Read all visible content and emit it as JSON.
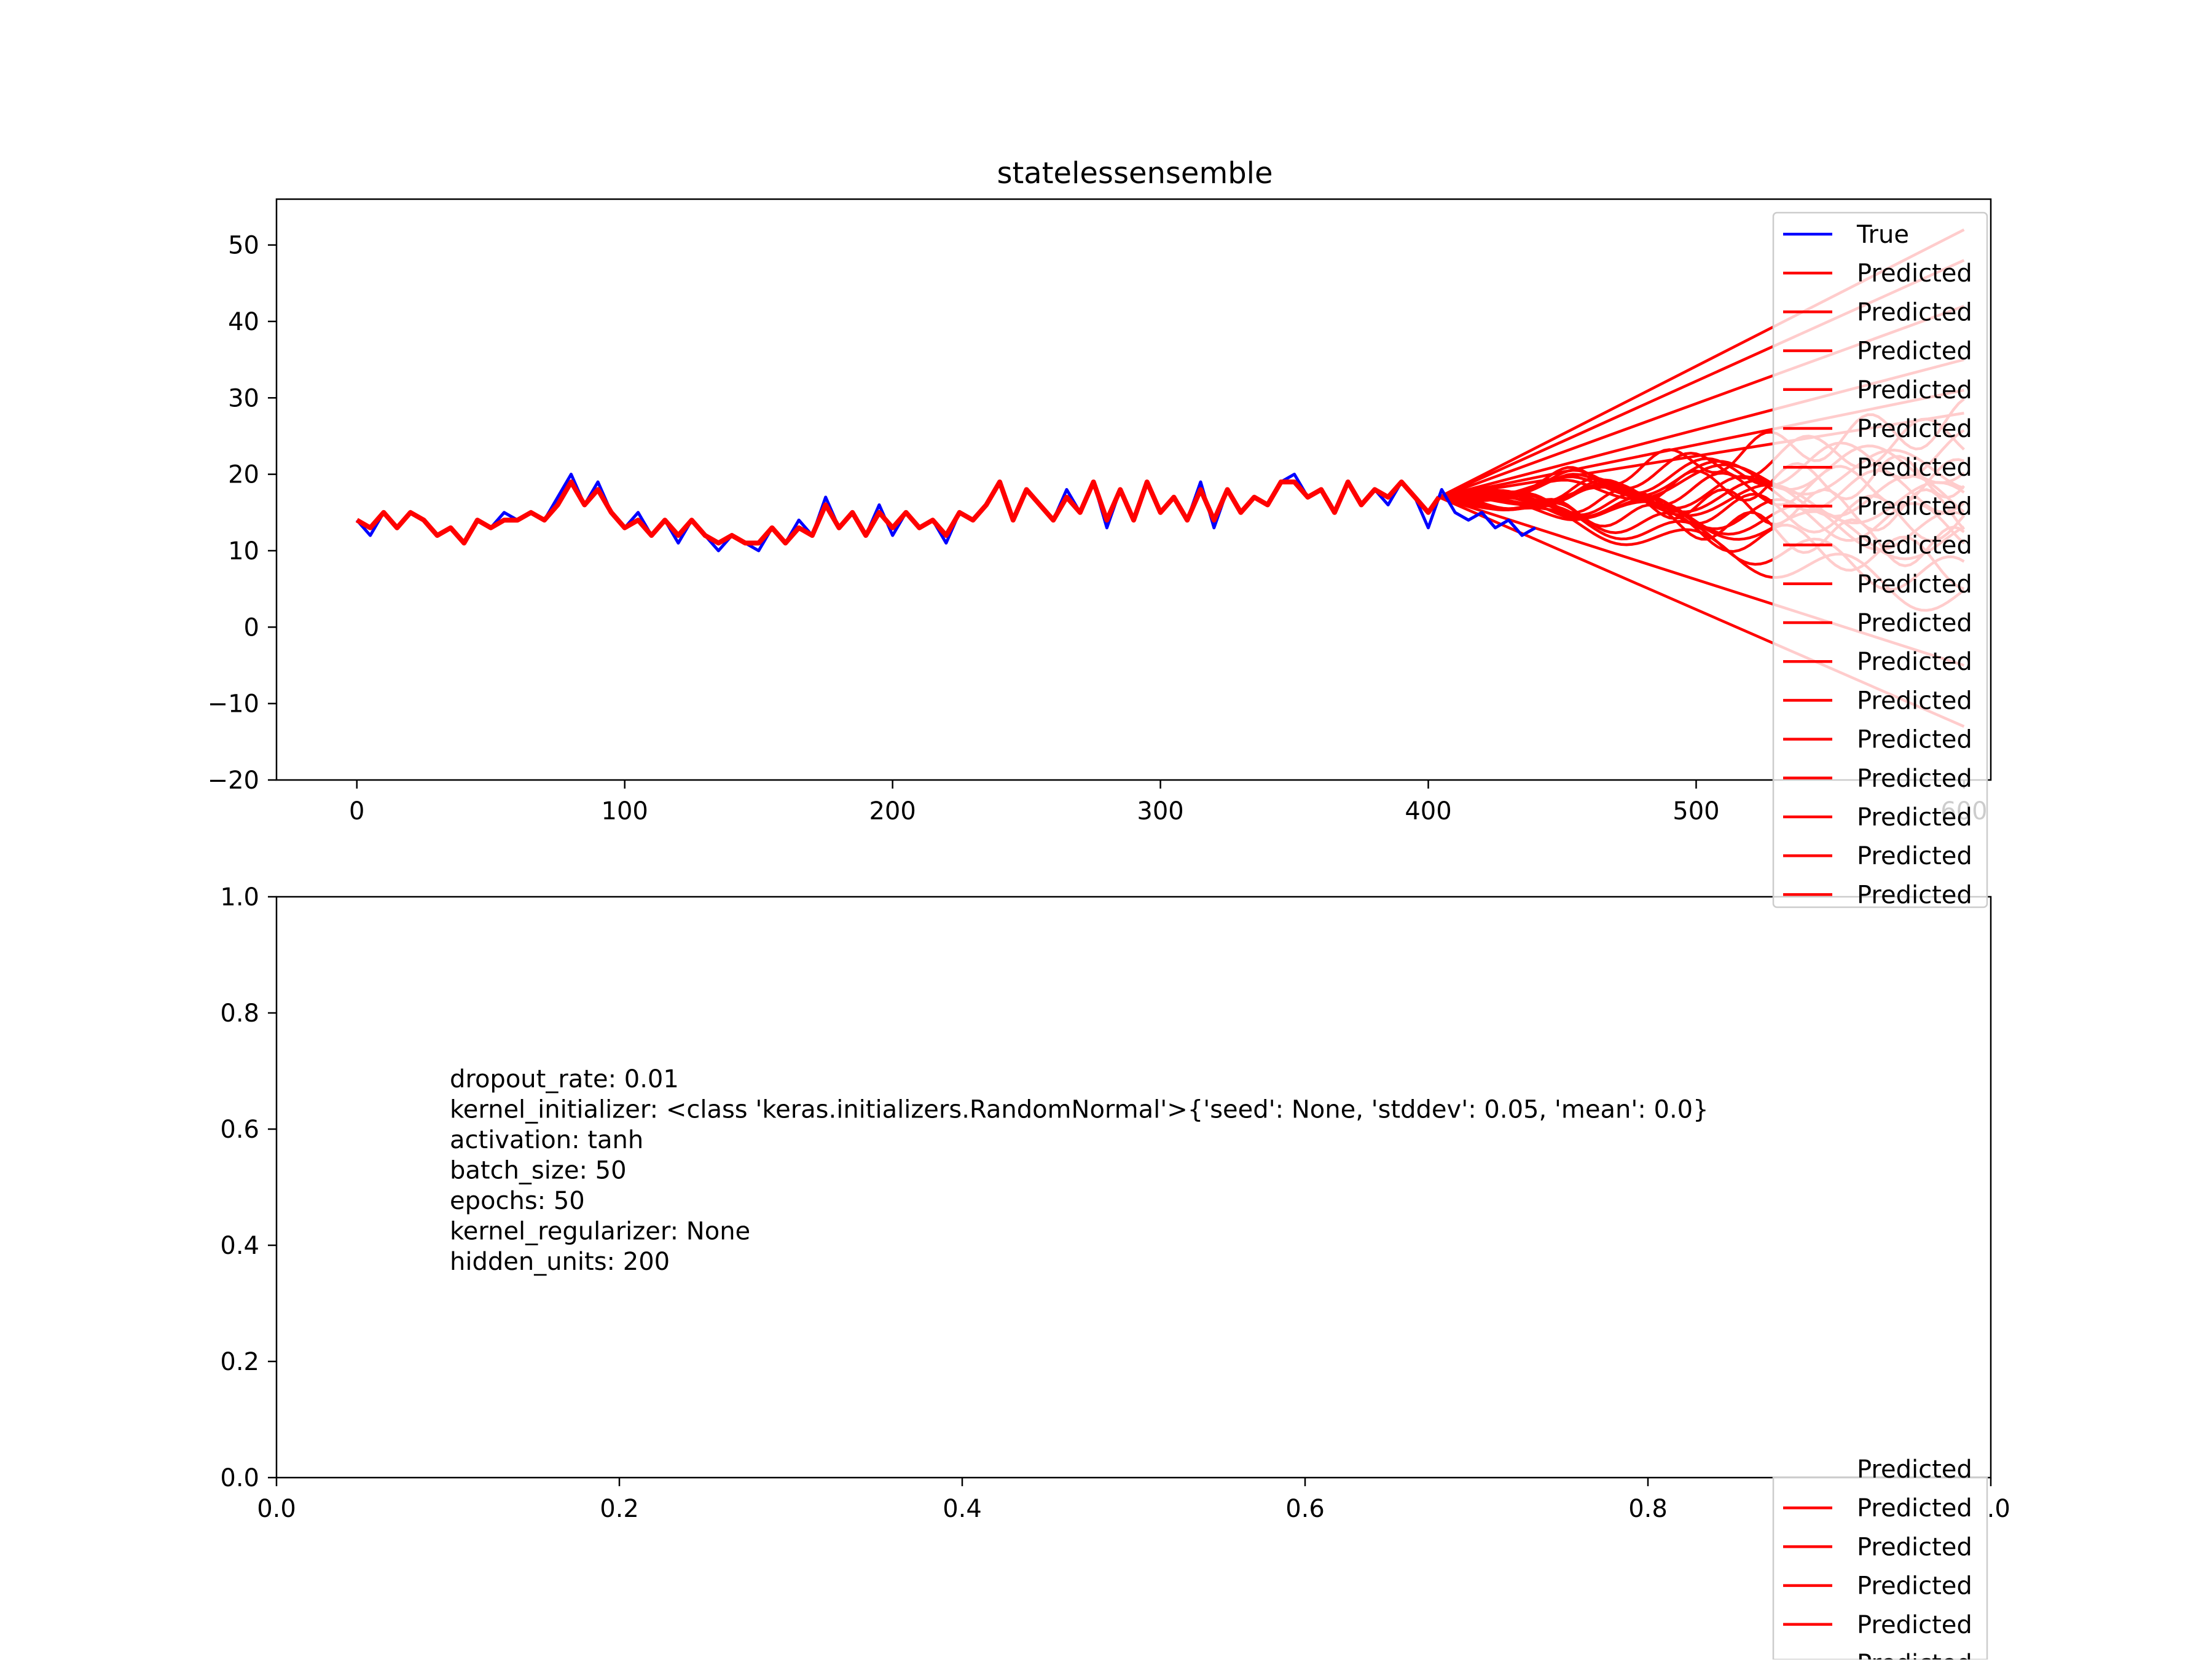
{
  "chart_data": [
    {
      "type": "line",
      "title": "statelessensemble",
      "xlim": [
        -30,
        610
      ],
      "ylim": [
        -20,
        56
      ],
      "xticks": [
        0,
        100,
        200,
        300,
        400,
        500,
        600
      ],
      "yticks": [
        -20,
        -10,
        0,
        10,
        20,
        30,
        40,
        50
      ],
      "xtick_labels": [
        "0",
        "100",
        "200",
        "300",
        "400",
        "500",
        "600"
      ],
      "ytick_labels": [
        "−20",
        "−10",
        "0",
        "10",
        "20",
        "30",
        "40",
        "50"
      ],
      "legend_position": "upper right",
      "legend": [
        "True",
        "Predicted",
        "Predicted",
        "Predicted",
        "Predicted",
        "Predicted",
        "Predicted",
        "Predicted",
        "Predicted",
        "Predicted",
        "Predicted",
        "Predicted",
        "Predicted",
        "Predicted",
        "Predicted",
        "Predicted",
        "Predicted",
        "Predicted"
      ],
      "legend_bottom": [
        "Predicted",
        "Predicted",
        "Predicted",
        "Predicted",
        "Predicted",
        "Predicted"
      ],
      "true_color": "#0000ff",
      "predicted_color": "#ff0000",
      "true_series": {
        "name": "True",
        "x": [
          0,
          5,
          10,
          15,
          20,
          25,
          30,
          35,
          40,
          45,
          50,
          55,
          60,
          65,
          70,
          75,
          80,
          85,
          90,
          95,
          100,
          105,
          110,
          115,
          120,
          125,
          130,
          135,
          140,
          145,
          150,
          155,
          160,
          165,
          170,
          175,
          180,
          185,
          190,
          195,
          200,
          205,
          210,
          215,
          220,
          225,
          230,
          235,
          240,
          245,
          250,
          255,
          260,
          265,
          270,
          275,
          280,
          285,
          290,
          295,
          300,
          305,
          310,
          315,
          320,
          325,
          330,
          335,
          340,
          345,
          350,
          355,
          360,
          365,
          370,
          375,
          380,
          385,
          390,
          395,
          400,
          405,
          410,
          415,
          420,
          425,
          430,
          435,
          440
        ],
        "y": [
          14,
          12,
          15,
          13,
          15,
          14,
          12,
          13,
          11,
          14,
          13,
          15,
          14,
          15,
          14,
          17,
          20,
          16,
          19,
          15,
          13,
          15,
          12,
          14,
          11,
          14,
          12,
          10,
          12,
          11,
          10,
          13,
          11,
          14,
          12,
          17,
          13,
          15,
          12,
          16,
          12,
          15,
          13,
          14,
          11,
          15,
          14,
          16,
          19,
          14,
          18,
          16,
          14,
          18,
          15,
          19,
          13,
          18,
          14,
          19,
          15,
          17,
          14,
          19,
          13,
          18,
          15,
          17,
          16,
          19,
          20,
          17,
          18,
          15,
          19,
          16,
          18,
          16,
          19,
          17,
          13,
          18,
          15,
          14,
          15,
          13,
          14,
          12,
          13
        ]
      },
      "predicted_series": {
        "name": "Predicted",
        "x": [
          0,
          5,
          10,
          15,
          20,
          25,
          30,
          35,
          40,
          45,
          50,
          55,
          60,
          65,
          70,
          75,
          80,
          85,
          90,
          95,
          100,
          105,
          110,
          115,
          120,
          125,
          130,
          135,
          140,
          145,
          150,
          155,
          160,
          165,
          170,
          175,
          180,
          185,
          190,
          195,
          200,
          205,
          210,
          215,
          220,
          225,
          230,
          235,
          240,
          245,
          250,
          255,
          260,
          265,
          270,
          275,
          280,
          285,
          290,
          295,
          300,
          305,
          310,
          315,
          320,
          325,
          330,
          335,
          340,
          345,
          350,
          355,
          360,
          365,
          370,
          375,
          380,
          385,
          390,
          395,
          400,
          404
        ],
        "y": [
          14,
          13,
          15,
          13,
          15,
          14,
          12,
          13,
          11,
          14,
          13,
          14,
          14,
          15,
          14,
          16,
          19,
          16,
          18,
          15,
          13,
          14,
          12,
          14,
          12,
          14,
          12,
          11,
          12,
          11,
          11,
          13,
          11,
          13,
          12,
          16,
          13,
          15,
          12,
          15,
          13,
          15,
          13,
          14,
          12,
          15,
          14,
          16,
          19,
          14,
          18,
          16,
          14,
          17,
          15,
          19,
          14,
          18,
          14,
          19,
          15,
          17,
          14,
          18,
          14,
          18,
          15,
          17,
          16,
          19,
          19,
          17,
          18,
          15,
          19,
          16,
          18,
          17,
          19,
          17,
          15,
          17
        ]
      },
      "forecast_origin": {
        "x": 404,
        "y": 17
      },
      "forecast_end_x": 600,
      "forecast_straight_end_values": [
        52,
        48,
        42,
        35,
        31,
        28,
        -5,
        -13
      ],
      "forecast_wavy_end_values": [
        27,
        25,
        23,
        22,
        21,
        20,
        19,
        18,
        17,
        16,
        15,
        14,
        13,
        12,
        11,
        10,
        8,
        6,
        4
      ]
    },
    {
      "type": "text",
      "xlim": [
        0.0,
        1.0
      ],
      "ylim": [
        0.0,
        1.0
      ],
      "xticks": [
        0.0,
        0.2,
        0.4,
        0.6,
        0.8,
        1.0
      ],
      "yticks": [
        0.0,
        0.2,
        0.4,
        0.6,
        0.8,
        1.0
      ],
      "xtick_labels": [
        "0.0",
        "0.2",
        "0.4",
        "0.6",
        "0.8",
        "1.0"
      ],
      "ytick_labels": [
        "0.0",
        "0.2",
        "0.4",
        "0.6",
        "0.8",
        "1.0"
      ],
      "annotation_lines": [
        "dropout_rate: 0.01",
        "kernel_initializer: <class 'keras.initializers.RandomNormal'>{'seed': None, 'stddev': 0.05, 'mean': 0.0}",
        "activation: tanh",
        "batch_size: 50",
        "epochs: 50",
        "kernel_regularizer: None",
        "hidden_units: 200"
      ]
    }
  ]
}
